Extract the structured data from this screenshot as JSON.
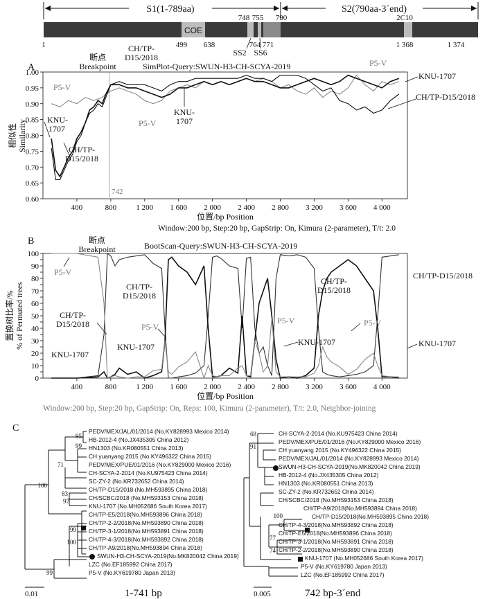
{
  "genome_map": {
    "s1_label": "S1(1-789aa)",
    "s2_label": "S2(790aa-3´end)",
    "coe_label": "COE",
    "top_positions": [
      "748",
      "755",
      "790",
      "2C10"
    ],
    "bottom_positions": [
      "1",
      "499",
      "638",
      "764",
      "771",
      "1 368",
      "1 374"
    ],
    "ss2_label": "SS2",
    "ss6_label": "SS6",
    "colors": {
      "bar": "#3a3a3a",
      "domain": "#bcbcbc"
    }
  },
  "panel_a": {
    "letter": "A",
    "query_title": "SimPlot-Query:SWUN-H3-CH-SCYA-2019",
    "breakpoint_cn": "断点",
    "breakpoint_en": "Breakpoint",
    "breakpoint_pos": "742",
    "ylabel_cn": "相似性",
    "ylabel_en": "Similarity",
    "xlabel": "位置/bp Position",
    "footer": "Window:200 bp, Step:20 bp, GapStrip: On, Kimura (2-parameter), T/t: 2.0",
    "labels": {
      "p5v_left": "P5-V",
      "p5v_mid": "P5-V",
      "p5v_right": "P5-V",
      "chtp_top_1": "CH/TP-",
      "chtp_top_2": "D15/2018",
      "chtp_low_1": "CH/TP-",
      "chtp_low_2": "D15/2018",
      "chtp_right": "CH/TP-D15/2018",
      "knu_left_1": "KNU-",
      "knu_left_2": "1707",
      "knu_mid_1": "KNU-",
      "knu_mid_2": "1707",
      "knu_right": "KNU-1707"
    }
  },
  "panel_b": {
    "letter": "B",
    "query_title": "BootScan-Query:SWUN-H3-CH-SCYA-2019",
    "breakpoint_cn": "断点",
    "breakpoint_en": "Breakpoint",
    "ylabel_cn": "置换树比率/%",
    "ylabel_en": "% of Permuted trees",
    "xlabel": "位置/bp Position",
    "footer": "Window:200 bp, Step:20 bp, GapStrip: On, Reps: 100, Kimura (2-parameter), T/t: 2.0, Neighbor-joining",
    "labels": {
      "p5v_top": "P5-V",
      "chtp_left_1": "CH/TP-",
      "chtp_left_2": "D15/2018",
      "chtp_mid_1": "CH/TP-",
      "chtp_mid_2": "D15/2018",
      "chtp_mid2_1": "CH/TP-",
      "chtp_mid2_2": "D15/2018",
      "chtp_right": "CH/TP-D15/2018",
      "knu_left": "KNU-1707",
      "knu_mid": "KNU-1707",
      "knu_mid2": "KNU-1707",
      "knu_right": "KNU-1707",
      "p5v_a": "P5-V",
      "p5v_b": "P5-V",
      "p5v_c": "P5-V"
    }
  },
  "chart_data": [
    {
      "type": "line",
      "title": "SimPlot-Query:SWUN-H3-CH-SCYA-2019",
      "xlabel": "位置/bp Position",
      "ylabel": "相似性 Similarity",
      "xlim": [
        0,
        4300
      ],
      "ylim": [
        0.6,
        1.0
      ],
      "xticks": [
        400,
        800,
        1200,
        1600,
        2000,
        2400,
        2800,
        3200,
        3600,
        4000
      ],
      "xtick_labels": [
        "400",
        "800",
        "1 200",
        "1 600",
        "2 000",
        "2 400",
        "2 800",
        "3 200",
        "3 600",
        "4 000"
      ],
      "yticks": [
        0.6,
        0.65,
        0.7,
        0.75,
        0.8,
        0.85,
        0.9,
        0.95,
        1.0
      ],
      "ytick_labels": [
        "0.60",
        "0.65",
        "0.70",
        "0.75",
        "0.80",
        "0.85",
        "0.90",
        "0.95",
        "1.00"
      ],
      "series": [
        {
          "name": "P5-V",
          "color": "#8a8a8a",
          "x": [
            100,
            200,
            300,
            400,
            500,
            600,
            700,
            742,
            800,
            900,
            1000,
            1100,
            1200,
            1300,
            1400,
            1500,
            1600,
            1700,
            1800,
            1900,
            2000,
            2100,
            2200,
            2300,
            2400,
            2500,
            2600,
            2700,
            2800,
            2900,
            3000,
            3100,
            3200,
            3300,
            3400,
            3500,
            3600,
            3700,
            3800,
            3900,
            4000,
            4100,
            4200
          ],
          "y": [
            0.9,
            0.89,
            0.91,
            0.9,
            0.92,
            0.91,
            0.92,
            0.93,
            0.94,
            0.95,
            0.94,
            0.93,
            0.91,
            0.9,
            0.91,
            0.94,
            0.95,
            0.96,
            0.95,
            0.97,
            0.96,
            0.97,
            0.96,
            0.97,
            0.98,
            0.97,
            0.98,
            0.97,
            0.95,
            0.96,
            0.94,
            0.93,
            0.95,
            0.92,
            0.94,
            0.93,
            0.95,
            0.99,
            0.96,
            0.94,
            0.97,
            0.96,
            0.97
          ]
        },
        {
          "name": "KNU-1707",
          "color": "#111111",
          "x": [
            100,
            150,
            200,
            250,
            300,
            350,
            400,
            450,
            500,
            550,
            600,
            650,
            700,
            742,
            800,
            900,
            1000,
            1100,
            1200,
            1300,
            1400,
            1500,
            1600,
            1700,
            1800,
            1900,
            2000,
            2100,
            2200,
            2300,
            2400,
            2500,
            2600,
            2700,
            2800,
            2900,
            3000,
            3100,
            3200,
            3300,
            3400,
            3500,
            3600,
            3700,
            3800,
            3900,
            4000,
            4100,
            4200
          ],
          "y": [
            0.79,
            0.69,
            0.67,
            0.7,
            0.73,
            0.75,
            0.79,
            0.81,
            0.84,
            0.88,
            0.89,
            0.91,
            0.9,
            0.93,
            0.96,
            0.96,
            0.95,
            0.95,
            0.94,
            0.93,
            0.92,
            0.93,
            0.95,
            0.95,
            0.96,
            0.97,
            0.96,
            0.97,
            0.96,
            0.97,
            0.98,
            0.97,
            0.97,
            0.96,
            0.95,
            0.95,
            0.96,
            0.97,
            0.98,
            0.97,
            0.96,
            0.97,
            0.99,
            0.98,
            0.97,
            0.96,
            0.95,
            0.97,
            0.98
          ]
        },
        {
          "name": "CH/TP-D15/2018",
          "color": "#111111",
          "x": [
            100,
            150,
            200,
            250,
            300,
            350,
            400,
            450,
            500,
            550,
            600,
            650,
            700,
            742,
            800,
            900,
            1000,
            1100,
            1200,
            1300,
            1400,
            1500,
            1600,
            1700,
            1800,
            1900,
            2000,
            2100,
            2200,
            2300,
            2400,
            2500,
            2600,
            2700,
            2800,
            2900,
            3000,
            3100,
            3200,
            3300,
            3400,
            3500,
            3600,
            3700,
            3800,
            3900,
            4000,
            4100,
            4200
          ],
          "y": [
            0.76,
            0.66,
            0.66,
            0.69,
            0.72,
            0.74,
            0.78,
            0.8,
            0.84,
            0.87,
            0.88,
            0.9,
            0.89,
            0.92,
            0.96,
            0.97,
            0.96,
            0.96,
            0.96,
            0.95,
            0.94,
            0.96,
            0.97,
            0.97,
            0.98,
            0.98,
            0.98,
            0.98,
            0.98,
            0.98,
            0.99,
            0.98,
            0.98,
            0.97,
            0.99,
            0.99,
            0.99,
            0.98,
            0.96,
            0.94,
            0.95,
            0.91,
            0.9,
            0.88,
            0.89,
            0.87,
            0.88,
            0.91,
            0.93
          ]
        }
      ]
    },
    {
      "type": "line",
      "title": "BootScan-Query:SWUN-H3-CH-SCYA-2019",
      "xlabel": "位置/bp Position",
      "ylabel": "置换树比率/% % of Permuted trees",
      "xlim": [
        0,
        4300
      ],
      "ylim": [
        0,
        100
      ],
      "xticks": [
        400,
        800,
        1200,
        1600,
        2000,
        2400,
        2800,
        3200,
        3600,
        4000
      ],
      "xtick_labels": [
        "400",
        "800",
        "1 200",
        "1 600",
        "2 000",
        "2 400",
        "2 800",
        "3 200",
        "3 600",
        "4 000"
      ],
      "yticks": [
        0,
        5,
        10,
        15,
        20,
        25,
        30,
        35,
        40,
        45,
        50,
        55,
        60,
        65,
        70,
        75,
        80,
        85,
        90,
        95,
        100
      ],
      "series": [
        {
          "name": "CH/TP-D15/2018",
          "color": "#333333",
          "x": [
            100,
            400,
            650,
            720,
            760,
            800,
            850,
            900,
            1000,
            1100,
            1200,
            1300,
            1400,
            1440,
            1480,
            1520,
            1600,
            1700,
            1800,
            1900,
            1950,
            2000,
            2050,
            2100,
            2200,
            2300,
            2350,
            2400,
            2450,
            2500,
            2550,
            2600,
            2650,
            2700,
            2750,
            2800,
            2900,
            3000,
            3100,
            3200,
            3250,
            3300,
            3350,
            3400,
            3500,
            3600,
            3700,
            3800,
            3900,
            3950,
            4000,
            4100,
            4200
          ],
          "y": [
            0,
            0,
            2,
            35,
            100,
            98,
            90,
            95,
            97,
            98,
            99,
            92,
            88,
            40,
            0,
            0,
            1,
            2,
            4,
            10,
            50,
            97,
            98,
            96,
            90,
            88,
            40,
            96,
            97,
            40,
            20,
            25,
            10,
            2,
            80,
            99,
            98,
            99,
            97,
            88,
            40,
            5,
            3,
            2,
            1,
            2,
            3,
            5,
            10,
            50,
            97,
            98,
            99
          ]
        },
        {
          "name": "KNU-1707",
          "color": "#111111",
          "x": [
            100,
            400,
            650,
            720,
            760,
            800,
            850,
            900,
            1000,
            1100,
            1200,
            1300,
            1400,
            1440,
            1480,
            1520,
            1600,
            1700,
            1800,
            1900,
            1950,
            2000,
            2050,
            2100,
            2200,
            2300,
            2350,
            2400,
            2450,
            2500,
            2550,
            2600,
            2650,
            2700,
            2750,
            2800,
            2900,
            3000,
            3100,
            3200,
            3250,
            3300,
            3350,
            3400,
            3500,
            3600,
            3700,
            3800,
            3900,
            3950,
            4000,
            4100,
            4200
          ],
          "y": [
            0,
            0,
            1,
            5,
            0,
            1,
            3,
            8,
            3,
            5,
            0,
            2,
            5,
            30,
            95,
            97,
            90,
            85,
            75,
            90,
            40,
            1,
            1,
            2,
            8,
            4,
            50,
            2,
            1,
            30,
            60,
            70,
            80,
            50,
            15,
            0,
            1,
            0,
            2,
            8,
            50,
            70,
            80,
            85,
            90,
            95,
            90,
            80,
            70,
            40,
            1,
            1,
            0
          ]
        },
        {
          "name": "P5-V",
          "color": "#888888",
          "x": [
            100,
            400,
            650,
            720,
            760,
            800,
            850,
            900,
            1000,
            1100,
            1200,
            1300,
            1400,
            1440,
            1480,
            1520,
            1600,
            1700,
            1800,
            1900,
            1950,
            2000,
            2050,
            2100,
            2200,
            2300,
            2350,
            2400,
            2450,
            2500,
            2550,
            2600,
            2650,
            2700,
            2750,
            2800,
            2900,
            3000,
            3100,
            3200,
            3250,
            3300,
            3350,
            3400,
            3500,
            3600,
            3700,
            3800,
            3900,
            3950,
            4000,
            4100,
            4200
          ],
          "y": [
            100,
            100,
            97,
            60,
            0,
            1,
            2,
            1,
            0,
            1,
            1,
            6,
            7,
            30,
            5,
            3,
            9,
            13,
            21,
            0,
            10,
            2,
            1,
            2,
            2,
            8,
            10,
            2,
            2,
            30,
            20,
            5,
            10,
            48,
            5,
            1,
            1,
            1,
            1,
            4,
            10,
            25,
            17,
            13,
            9,
            3,
            7,
            15,
            20,
            10,
            2,
            1,
            1
          ]
        }
      ]
    }
  ],
  "panel_c": {
    "letter": "C",
    "left": {
      "range_label": "1-741 bp",
      "scale_label": "0.01",
      "taxa": [
        "PEDV/MEX/JAL/01/2014 (No.KY828993 Mexico 2014)",
        "HB-2012-4 (No.JX435305 China 2012)",
        "HN1303 (No.KR080551 China 2013)",
        "CH yuanyang 2015 (No.KY496322 China 2015)",
        "PEDV/MEX/PUE/01/2016 (No.KY829000 Mexico 2016)",
        "CH-SCYA-2-2014 (No.KU975423 China 2014)",
        "SC-ZY-2 (No.KR732652 China 2014)",
        "CH/TP-D15/2018 (No.MH593895 China 2018)",
        "CH/SCBC/2018 (No.MH593153 China 2018)",
        "KNU-1707 (No.MH052686 South Korea 2017)",
        "CH/TP-E5/2018(No.MH593896 China 2018)",
        "CH/TP-2-2/2018(No.MH593890 China 2018)",
        "CH/TP-3-1/2018(No.MH593891 China 2018)",
        "CH/TP-4-3/2018(No.MH593892 China 2018)",
        "CH/TP-A9/2018(No.MH593894 China 2018)",
        "SWUN-H3-CH-SCYA-2019(No.MK820042 China 2019)",
        "LZC (No.EF185992 China 2017)",
        "P5-V (No.KY619780 Japan 2013)"
      ],
      "bootstraps": [
        "95",
        "99",
        "71",
        "100",
        "83",
        "97",
        "99",
        "100",
        "99"
      ]
    },
    "right": {
      "range_label": "742 bp-3´end",
      "scale_label": "0.005",
      "taxa": [
        "CH-SCYA-2-2014 (No.KU975423 China 2014)",
        "PEDV/MEX/PUE/01/2016 (No.KY829000 Mexico 2016)",
        "CH yuanyang 2015 (No.KY496322 China 2015)",
        "PEDV/MEX/JAL/01/2014 (No.KY828993 Mexico 2014)",
        "SWUN-H3-CH-SCYA-2019(No.MK820042 China 2019)",
        "HB-2012-4 (No.JX435305 China 2012)",
        "HN1303 (No.KR080551 China 2013)",
        "SC-ZY-2 (No.KR732652 China 2014)",
        "CH/SCBC/2018 (No.MH593153 China 2018)",
        "CH/TP-A9/2018(No.MH593894 China 2018)",
        "CH/TP-D15/2018(No.MH593895 China 2018)",
        "CH/TP-4-3/2018(No.MH593892 China 2018)",
        "CH/TP-E5/2018(No.MH593896 China 2018)",
        "CH/TP-3-1/2018(No.MH593891 China 2018)",
        "CH/TP-2-2/2018(No.MH593890 China 2018)",
        "KNU-1707 (No.MH052686 South Korea 2017)",
        "P5-V (No.KY619780 Japan 2013)",
        "LZC (No.EF185992 China 2017)"
      ],
      "bootstraps": [
        "68",
        "91",
        "100",
        "77",
        "74"
      ]
    }
  }
}
